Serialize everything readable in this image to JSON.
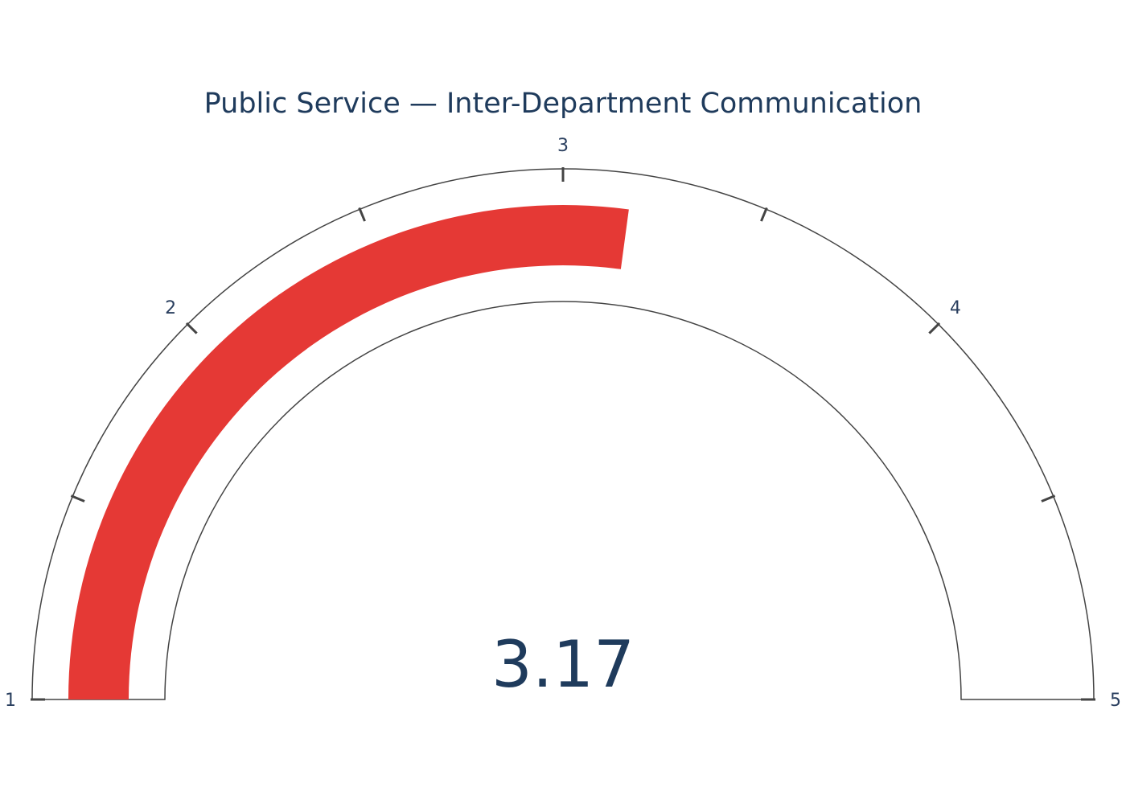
{
  "chart_data": {
    "type": "gauge",
    "title": "Public Service — Inter-Department Communication",
    "value": 3.17,
    "value_label": "3.17",
    "range": [
      1,
      5
    ],
    "major_ticks": [
      1,
      2,
      3,
      4,
      5
    ],
    "major_tick_labels": [
      "1",
      "2",
      "3",
      "4",
      "5"
    ],
    "minor_ticks": [
      1.5,
      2.5,
      3.5,
      4.5
    ],
    "bar_color": "#e53935",
    "outline_color": "#444444",
    "text_color": "#1f3b5c"
  }
}
